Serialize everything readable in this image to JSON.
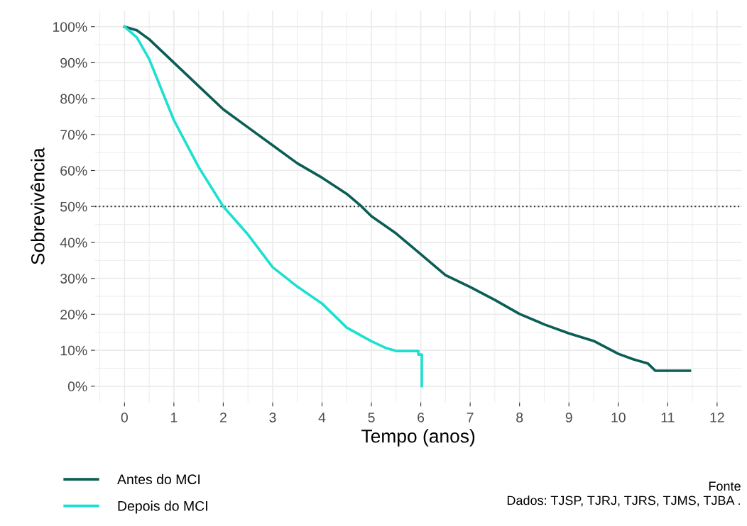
{
  "chart_data": {
    "type": "line",
    "xlabel": "Tempo (anos)",
    "ylabel": "Sobrevivência",
    "xlim": [
      -0.6,
      12.5
    ],
    "xticks": [
      0,
      1,
      2,
      3,
      4,
      5,
      6,
      7,
      8,
      9,
      10,
      11,
      12
    ],
    "ylim": [
      -4.5,
      104.5
    ],
    "yticks": [
      {
        "value": 0,
        "label": "0%"
      },
      {
        "value": 10,
        "label": "10%"
      },
      {
        "value": 20,
        "label": "20%"
      },
      {
        "value": 30,
        "label": "30%"
      },
      {
        "value": 40,
        "label": "40%"
      },
      {
        "value": 50,
        "label": "50%"
      },
      {
        "value": 60,
        "label": "60%"
      },
      {
        "value": 70,
        "label": "70%"
      },
      {
        "value": 80,
        "label": "80%"
      },
      {
        "value": 90,
        "label": "90%"
      },
      {
        "value": 100,
        "label": "100%"
      }
    ],
    "grid": true,
    "legend": "bottom left",
    "marker": "none",
    "line_style": "solid",
    "series": [
      {
        "name": "Antes do MCI",
        "color": "#0b5e55",
        "x": [
          0,
          0.25,
          0.5,
          1,
          1.5,
          2,
          2.5,
          3,
          3.5,
          4,
          4.5,
          4.8,
          5,
          5.5,
          6,
          6.5,
          7,
          7.5,
          8,
          8.5,
          9,
          9.5,
          10,
          10.3,
          10.6,
          10.75,
          11.45
        ],
        "values": [
          100,
          99,
          96.5,
          90,
          83.5,
          77,
          72,
          67,
          62,
          58,
          53.5,
          50,
          47.3,
          42.5,
          36.7,
          30.9,
          27.6,
          24,
          20.1,
          17.2,
          14.7,
          12.6,
          9,
          7.5,
          6.3,
          4.3,
          4.3
        ]
      },
      {
        "name": "Depois do MCI",
        "color": "#1de0d0",
        "x": [
          0,
          0.25,
          0.5,
          1,
          1.5,
          2,
          2.5,
          3,
          3.5,
          4,
          4.5,
          5,
          5.3,
          5.5,
          5.95,
          5.95,
          6.02,
          6.02
        ],
        "values": [
          100,
          97,
          91,
          74,
          61,
          50,
          42.2,
          33.1,
          27.7,
          23,
          16.3,
          12.5,
          10.6,
          9.8,
          9.8,
          8.8,
          8.8,
          0
        ]
      }
    ],
    "ref_lines": [
      {
        "axis": "y",
        "value": 50,
        "color": "#333333",
        "line_style": "dotted"
      }
    ],
    "annotations": [
      "Fonte",
      "Dados: TJSP, TJRJ, TJRS, TJMS, TJBA ."
    ]
  }
}
